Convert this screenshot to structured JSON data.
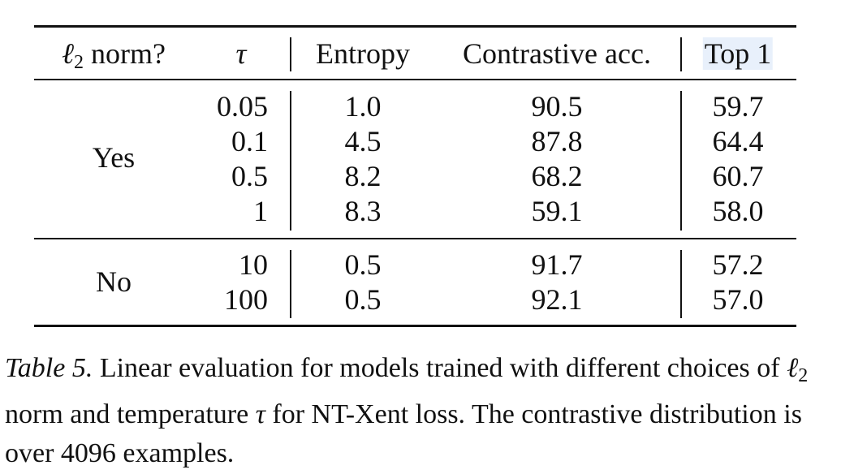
{
  "table": {
    "headers": {
      "l2_norm_prefix": "ℓ",
      "l2_norm_sub": "2",
      "l2_norm_suffix": " norm?",
      "tau": "τ",
      "entropy": "Entropy",
      "contrastive_acc": "Contrastive acc.",
      "top1": "Top 1"
    },
    "groups": [
      {
        "label": "Yes",
        "rows": [
          {
            "tau": "0.05",
            "entropy": "1.0",
            "contrastive_acc": "90.5",
            "top1": "59.7"
          },
          {
            "tau": "0.1",
            "entropy": "4.5",
            "contrastive_acc": "87.8",
            "top1": "64.4"
          },
          {
            "tau": "0.5",
            "entropy": "8.2",
            "contrastive_acc": "68.2",
            "top1": "60.7"
          },
          {
            "tau": "1",
            "entropy": "8.3",
            "contrastive_acc": "59.1",
            "top1": "58.0"
          }
        ]
      },
      {
        "label": "No",
        "rows": [
          {
            "tau": "10",
            "entropy": "0.5",
            "contrastive_acc": "91.7",
            "top1": "57.2"
          },
          {
            "tau": "100",
            "entropy": "0.5",
            "contrastive_acc": "92.1",
            "top1": "57.0"
          }
        ]
      }
    ]
  },
  "caption": {
    "label": "Table 5.",
    "text_part1": " Linear evaluation for models trained with different choices of ",
    "ell": "ℓ",
    "ell_sub": "2",
    "text_part2": " norm and temperature ",
    "tau": "τ",
    "text_part3": " for NT-Xent loss. The contrastive distribution is over 4096 examples."
  }
}
